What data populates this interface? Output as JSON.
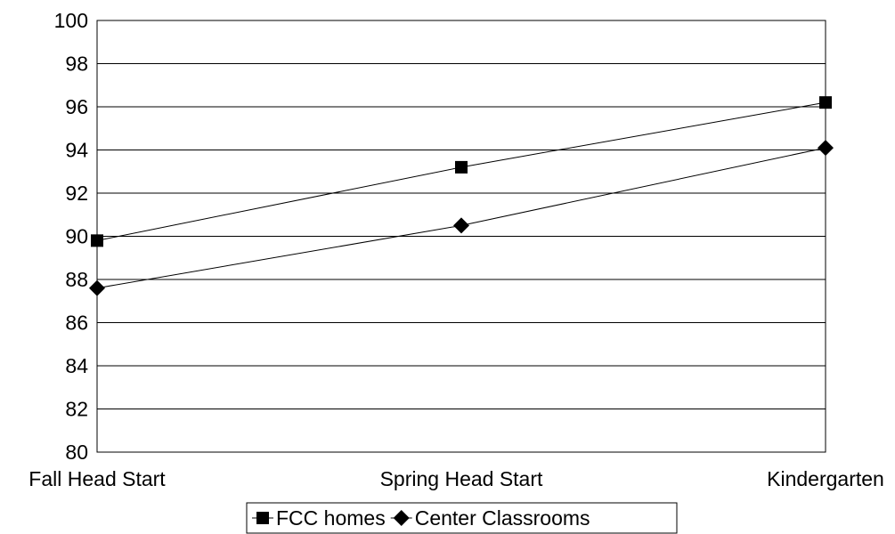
{
  "chart_data": {
    "type": "line",
    "categories": [
      "Fall Head Start",
      "Spring Head Start",
      "Kindergarten"
    ],
    "series": [
      {
        "name": "FCC homes",
        "values": [
          89.8,
          93.2,
          96.2
        ],
        "marker": "square"
      },
      {
        "name": "Center Classrooms",
        "values": [
          87.6,
          90.5,
          94.1
        ],
        "marker": "diamond"
      }
    ],
    "ylim": [
      80,
      100
    ],
    "yticks": [
      "80",
      "82",
      "84",
      "86",
      "88",
      "90",
      "92",
      "94",
      "96",
      "98",
      "100"
    ],
    "grid": true,
    "legend_position": "bottom",
    "colors": {
      "line": "#000000",
      "grid": "#000000",
      "background": "#ffffff"
    }
  }
}
